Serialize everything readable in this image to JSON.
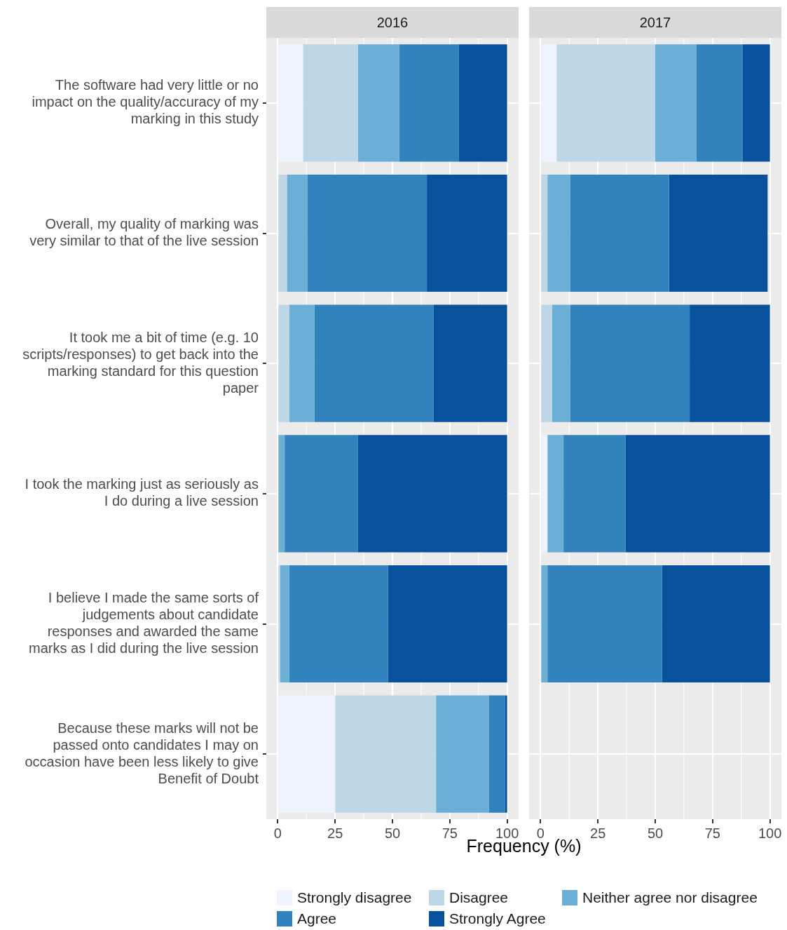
{
  "chart_data": [
    {
      "type": "bar",
      "title": "2016",
      "xlabel": "Frequency (%)",
      "orientation": "horizontal",
      "stacked": true,
      "grid": true,
      "legend": "bottom",
      "categories": [
        "The software had very little or no impact on the quality/accuracy of my marking in this study",
        "Overall, my quality of marking was very similar to that of the live session",
        "It took me a bit of time (e.g. 10 scripts/responses) to get back into the marking standard for this question paper",
        "I took the marking just as seriously as I do during a live session",
        "I believe I made the same sorts of judgements about candidate responses and awarded the same marks as I did during the live session",
        "Because these marks will not be passed onto candidates I may on occasion have been less likely to give Benefit of Doubt"
      ],
      "xlim": [
        -5,
        105
      ],
      "xticks": [
        0,
        25,
        50,
        75,
        100
      ],
      "series": [
        {
          "name": "Strongly disagree",
          "color": "#eff3ff",
          "values": [
            11,
            0,
            0,
            0,
            0,
            25
          ]
        },
        {
          "name": "Disagree",
          "color": "#bdd7e7",
          "values": [
            24,
            4,
            5,
            0,
            1,
            44
          ]
        },
        {
          "name": "Neither agree nor disagree",
          "color": "#6baed6",
          "values": [
            18,
            9,
            11,
            3,
            4,
            23
          ]
        },
        {
          "name": "Agree",
          "color": "#3182bd",
          "values": [
            26,
            52,
            52,
            32,
            43,
            7
          ]
        },
        {
          "name": "Strongly Agree",
          "color": "#08519c",
          "values": [
            21,
            35,
            32,
            65,
            52,
            1
          ]
        }
      ]
    },
    {
      "type": "bar",
      "title": "2017",
      "orientation": "horizontal",
      "stacked": true,
      "grid": true,
      "legend": "bottom",
      "tick_labels": "x",
      "categories": [
        null,
        null,
        null,
        null,
        null,
        null
      ],
      "xlim": [
        -5,
        105
      ],
      "xticks": [
        0,
        25,
        50,
        75,
        100
      ],
      "series": [
        {
          "name": "Strongly disagree",
          "color": "#eff3ff",
          "values": [
            7,
            0,
            0,
            3,
            0,
            null
          ]
        },
        {
          "name": "Disagree",
          "color": "#bdd7e7",
          "values": [
            43,
            3,
            5,
            0,
            0,
            null
          ]
        },
        {
          "name": "Neither agree nor disagree",
          "color": "#6baed6",
          "values": [
            18,
            10,
            8,
            7,
            3,
            null
          ]
        },
        {
          "name": "Agree",
          "color": "#3182bd",
          "values": [
            20,
            43,
            52,
            27,
            50,
            null
          ]
        },
        {
          "name": "Strongly Agree",
          "color": "#08519c",
          "values": [
            12,
            43,
            35,
            63,
            47,
            null
          ]
        }
      ]
    }
  ]
}
